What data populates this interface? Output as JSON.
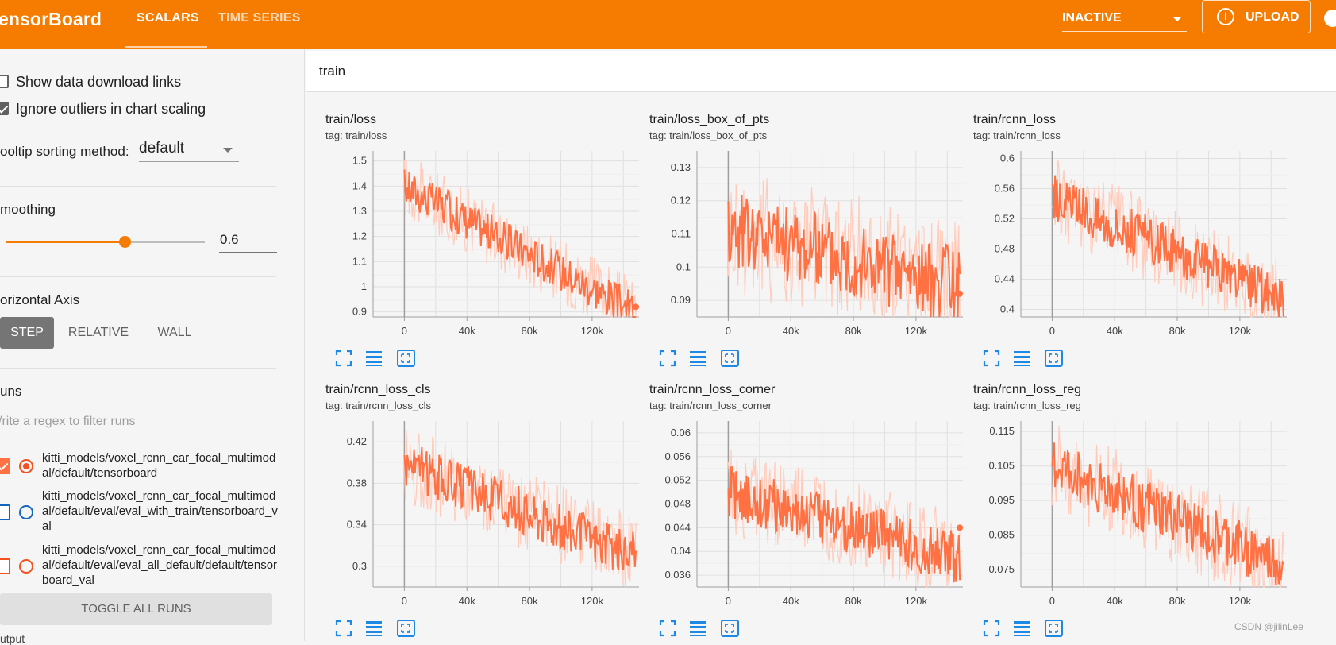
{
  "header": {
    "brand": "ensorBoard",
    "tabs": [
      {
        "label": "SCALARS",
        "active": true
      },
      {
        "label": "TIME SERIES",
        "active": false
      }
    ],
    "run_select": "INACTIVE",
    "upload_label": "UPLOAD",
    "upload_icon": "info-icon",
    "accent": "#f57c00"
  },
  "sidebar": {
    "show_download_links": "Show data download links",
    "ignore_outliers": "Ignore outliers in chart scaling",
    "tooltip_label": "ooltip sorting method:",
    "tooltip_value": "default",
    "smoothing_title": "moothing",
    "smoothing_value": "0.6",
    "smoothing_fraction": 0.6,
    "horizontal_axis_title": "orizontal Axis",
    "axis_options": [
      "STEP",
      "RELATIVE",
      "WALL"
    ],
    "runs_title": "uns",
    "filter_placeholder": "/rite a regex to filter runs",
    "runs": [
      {
        "label": "kitti_models/voxel_rcnn_car_focal_multimodal/default/tensorboard",
        "checked": true,
        "color": "#ff7043"
      },
      {
        "label": "kitti_models/voxel_rcnn_car_focal_multimodal/default/eval/eval_with_train/tensorboard_val",
        "checked": false,
        "color": "#1565c0"
      },
      {
        "label": "kitti_models/voxel_rcnn_car_focal_multimodal/default/eval/eval_all_default/default/tensorboard_val",
        "checked": false,
        "color": "#f4511e"
      }
    ],
    "toggle_all": "TOGGLE ALL RUNS",
    "output_label": "utput"
  },
  "main": {
    "group": "train",
    "credit": "CSDN @jilinLee"
  },
  "chart_data": [
    {
      "type": "line",
      "title": "train/loss",
      "tag": "tag: train/loss",
      "yticks": [
        "1.5",
        "1.4",
        "1.3",
        "1.2",
        "1.1",
        "1",
        "0.9"
      ],
      "ylim": [
        0.88,
        1.54
      ],
      "xticks": [
        "0",
        "40k",
        "80k",
        "120k"
      ],
      "xlim": [
        -20000,
        150000
      ],
      "start": 1.4,
      "end": 0.9,
      "noise": 0.12,
      "dot": 0.92
    },
    {
      "type": "line",
      "title": "train/loss_box_of_pts",
      "tag": "tag: train/loss_box_of_pts",
      "yticks": [
        "0.13",
        "0.12",
        "0.11",
        "0.1",
        "0.09"
      ],
      "ylim": [
        0.085,
        0.135
      ],
      "xticks": [
        "0",
        "40k",
        "80k",
        "120k"
      ],
      "xlim": [
        -20000,
        150000
      ],
      "start": 0.112,
      "end": 0.094,
      "noise": 0.018,
      "dot": 0.092
    },
    {
      "type": "line",
      "title": "train/rcnn_loss",
      "tag": "tag: train/rcnn_loss",
      "yticks": [
        "0.6",
        "0.56",
        "0.52",
        "0.48",
        "0.44",
        "0.4"
      ],
      "ylim": [
        0.39,
        0.61
      ],
      "xticks": [
        "0",
        "40k",
        "80k",
        "120k"
      ],
      "xlim": [
        -20000,
        150000
      ],
      "start": 0.55,
      "end": 0.41,
      "noise": 0.05,
      "dot": null
    },
    {
      "type": "line",
      "title": "train/rcnn_loss_cls",
      "tag": "tag: train/rcnn_loss_cls",
      "yticks": [
        "0.42",
        "0.38",
        "0.34",
        "0.3"
      ],
      "ylim": [
        0.28,
        0.44
      ],
      "xticks": [
        "0",
        "40k",
        "80k",
        "120k"
      ],
      "xlim": [
        -20000,
        150000
      ],
      "start": 0.4,
      "end": 0.31,
      "noise": 0.035,
      "dot": null
    },
    {
      "type": "line",
      "title": "train/rcnn_loss_corner",
      "tag": "tag: train/rcnn_loss_corner",
      "yticks": [
        "0.06",
        "0.056",
        "0.052",
        "0.048",
        "0.044",
        "0.04",
        "0.036"
      ],
      "ylim": [
        0.034,
        0.062
      ],
      "xticks": [
        "0",
        "40k",
        "80k",
        "120k"
      ],
      "xlim": [
        -20000,
        150000
      ],
      "start": 0.05,
      "end": 0.039,
      "noise": 0.007,
      "dot": 0.044
    },
    {
      "type": "line",
      "title": "train/rcnn_loss_reg",
      "tag": "tag: train/rcnn_loss_reg",
      "yticks": [
        "0.115",
        "0.105",
        "0.095",
        "0.085",
        "0.075"
      ],
      "ylim": [
        0.07,
        0.118
      ],
      "xticks": [
        "0",
        "40k",
        "80k",
        "120k"
      ],
      "xlim": [
        -20000,
        150000
      ],
      "start": 0.105,
      "end": 0.076,
      "noise": 0.012,
      "dot": null
    }
  ],
  "colors": {
    "series": "#ff7043",
    "series_raw": "#ffccbc",
    "grid": "#e0e0e0",
    "tool": "#1e88e5"
  }
}
